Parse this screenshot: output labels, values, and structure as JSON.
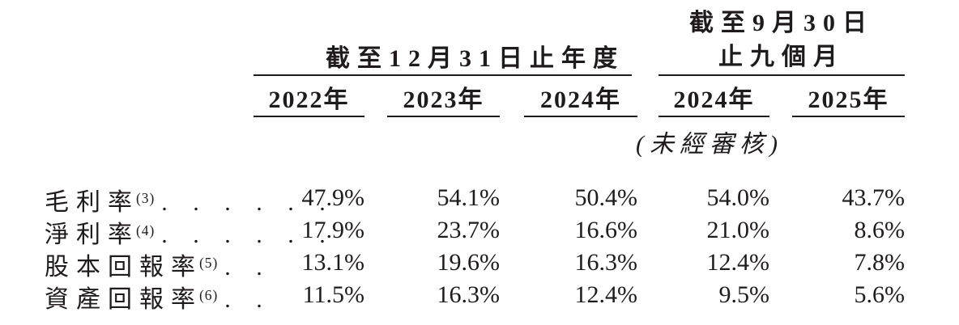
{
  "page": {
    "background": "#ffffff",
    "text_color": "#1f1b1c",
    "rule_color": "#1f1b1c"
  },
  "header": {
    "annual": {
      "title": "截至12月31日止年度",
      "years": [
        "2022年",
        "2023年",
        "2024年"
      ]
    },
    "nine_months": {
      "title_line1": "截至9月30日",
      "title_line2": "止九個月",
      "years": [
        "2024年",
        "2025年"
      ],
      "note": "(未經審核)"
    }
  },
  "rows": [
    {
      "label": "毛利率",
      "footnote": "(3)",
      "leader_dots": ". . . . . .",
      "values": [
        "47.9%",
        "54.1%",
        "50.4%",
        "54.0%",
        "43.7%"
      ]
    },
    {
      "label": "淨利率",
      "footnote": "(4)",
      "leader_dots": ". . . . . .",
      "values": [
        "17.9%",
        "23.7%",
        "16.6%",
        "21.0%",
        "8.6%"
      ]
    },
    {
      "label": "股本回報率",
      "footnote": "(5)",
      "leader_dots": ". .",
      "values": [
        "13.1%",
        "19.6%",
        "16.3%",
        "12.4%",
        "7.8%"
      ]
    },
    {
      "label": "資產回報率",
      "footnote": "(6)",
      "leader_dots": ". .",
      "values": [
        "11.5%",
        "16.3%",
        "12.4%",
        "9.5%",
        "5.6%"
      ]
    }
  ]
}
